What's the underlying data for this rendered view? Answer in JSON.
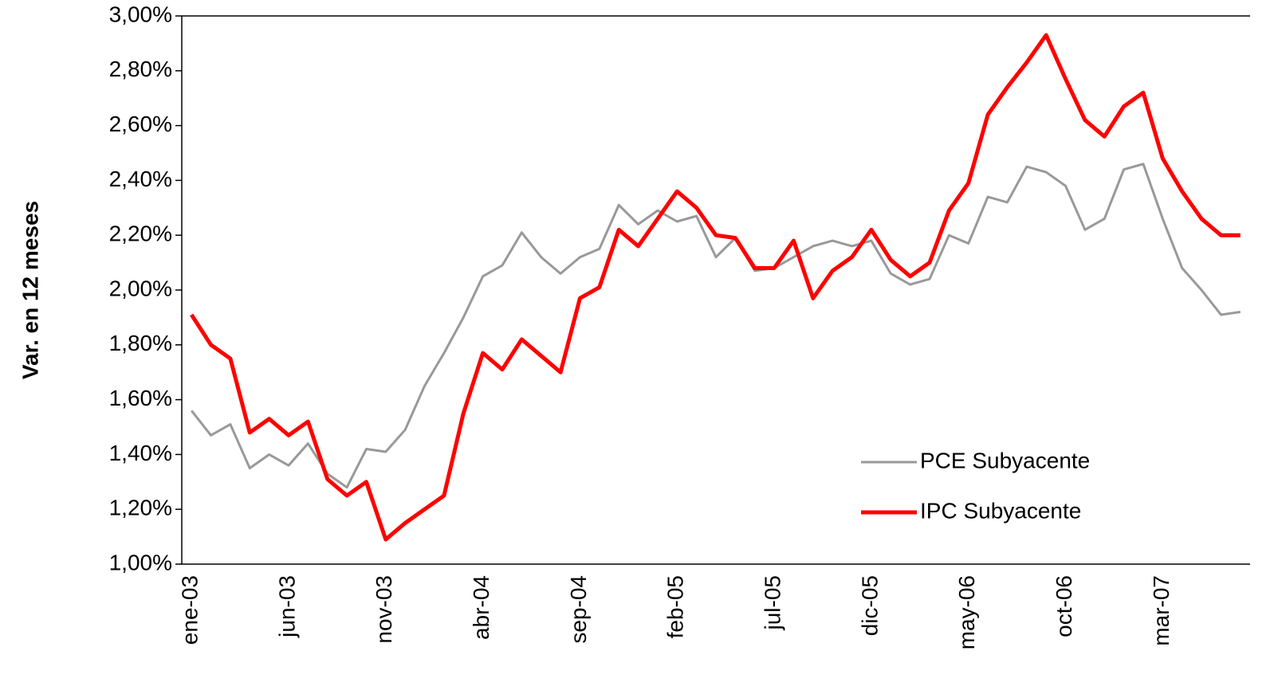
{
  "chart_data": {
    "type": "line",
    "y_label": "Var. en 12 meses",
    "categories": [
      "ene-03",
      null,
      null,
      null,
      null,
      "jun-03",
      null,
      null,
      null,
      null,
      "nov-03",
      null,
      null,
      null,
      null,
      "abr-04",
      null,
      null,
      null,
      null,
      "sep-04",
      null,
      null,
      null,
      null,
      "feb-05",
      null,
      null,
      null,
      null,
      "jul-05",
      null,
      null,
      null,
      null,
      "dic-05",
      null,
      null,
      null,
      null,
      "may-06",
      null,
      null,
      null,
      null,
      "oct-06",
      null,
      null,
      null,
      null,
      "mar-07",
      null,
      null,
      null,
      null
    ],
    "series": [
      {
        "name": "PCE Subyacente",
        "color": "#999999",
        "width": 3,
        "values": [
          1.56,
          1.47,
          1.51,
          1.35,
          1.4,
          1.36,
          1.44,
          1.33,
          1.28,
          1.42,
          1.41,
          1.49,
          1.65,
          1.77,
          1.9,
          2.05,
          2.09,
          2.21,
          2.12,
          2.06,
          2.12,
          2.15,
          2.31,
          2.24,
          2.29,
          2.25,
          2.27,
          2.12,
          2.19,
          2.07,
          2.08,
          2.12,
          2.16,
          2.18,
          2.16,
          2.18,
          2.06,
          2.02,
          2.04,
          2.2,
          2.17,
          2.34,
          2.32,
          2.45,
          2.43,
          2.38,
          2.22,
          2.26,
          2.44,
          2.46,
          2.26,
          2.08,
          2.0,
          1.91,
          1.92
        ]
      },
      {
        "name": "IPC Subyacente",
        "color": "#ff0000",
        "width": 5,
        "values": [
          1.91,
          1.8,
          1.75,
          1.48,
          1.53,
          1.47,
          1.52,
          1.31,
          1.25,
          1.3,
          1.09,
          1.15,
          1.2,
          1.25,
          1.55,
          1.77,
          1.71,
          1.82,
          1.76,
          1.7,
          1.97,
          2.01,
          2.22,
          2.16,
          2.26,
          2.36,
          2.3,
          2.2,
          2.19,
          2.08,
          2.08,
          2.18,
          1.97,
          2.07,
          2.12,
          2.22,
          2.11,
          2.05,
          2.1,
          2.29,
          2.39,
          2.64,
          2.74,
          2.83,
          2.93,
          2.77,
          2.62,
          2.56,
          2.67,
          2.72,
          2.48,
          2.36,
          2.26,
          2.2,
          2.2
        ]
      }
    ],
    "ylim": [
      1,
      3
    ],
    "yticks": [
      {
        "value": 1,
        "label": "1,00%"
      },
      {
        "value": 1.2,
        "label": "1,20%"
      },
      {
        "value": 1.4,
        "label": "1,40%"
      },
      {
        "value": 1.6,
        "label": "1,60%"
      },
      {
        "value": 1.8,
        "label": "1,80%"
      },
      {
        "value": 2,
        "label": "2,00%"
      },
      {
        "value": 2.2,
        "label": "2,20%"
      },
      {
        "value": 2.4,
        "label": "2,40%"
      },
      {
        "value": 2.6,
        "label": "2,60%"
      },
      {
        "value": 2.8,
        "label": "2,80%"
      },
      {
        "value": 3,
        "label": "3,00%"
      }
    ],
    "grid": false,
    "legend": "lower-right"
  }
}
